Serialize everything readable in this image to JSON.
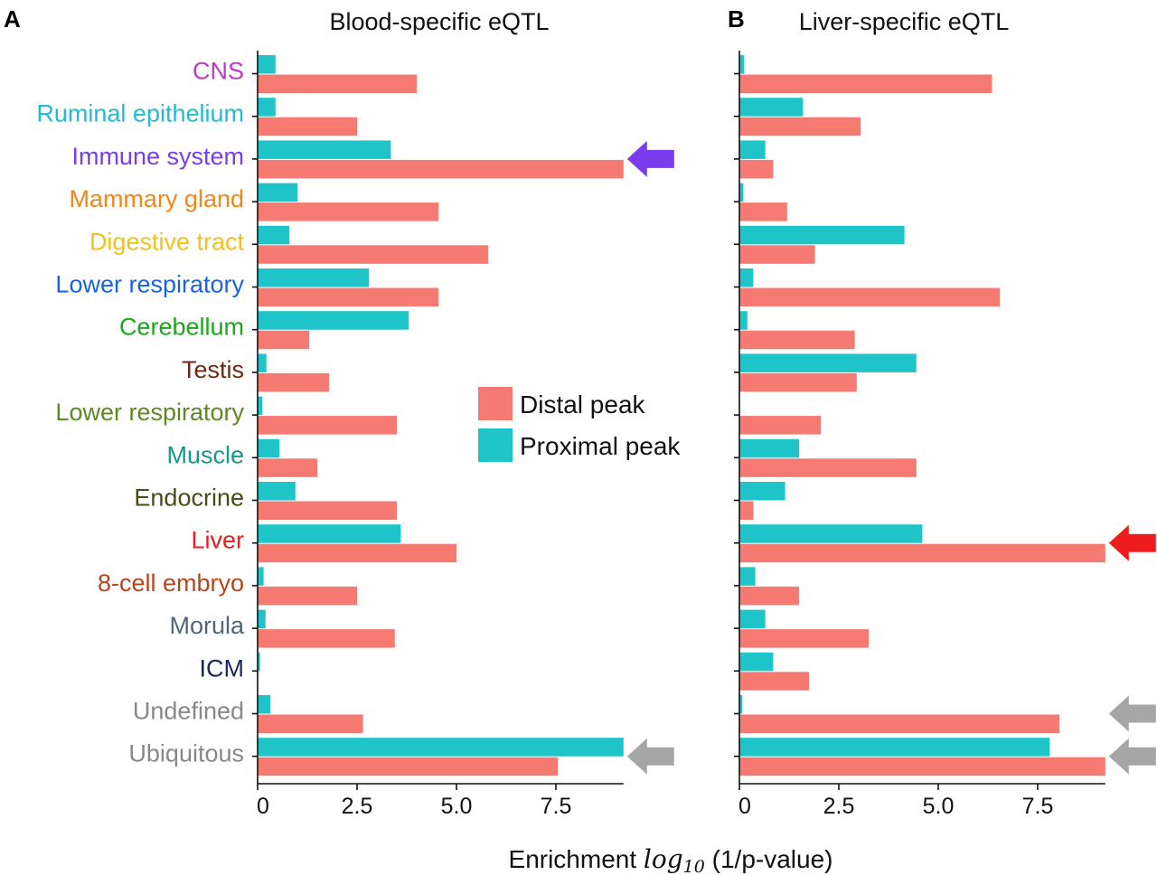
{
  "chart_data": {
    "type": "bar",
    "orientation": "horizontal",
    "xlabel_parts": [
      "Enrichment ",
      "log",
      "10",
      " (1/p-value)"
    ],
    "categories": [
      {
        "label": "CNS",
        "color": "#c03ac6"
      },
      {
        "label": "Ruminal epithelium",
        "color": "#1fbcd3"
      },
      {
        "label": "Immune system",
        "color": "#7b3cf0"
      },
      {
        "label": "Mammary gland",
        "color": "#f0861c"
      },
      {
        "label": "Digestive tract",
        "color": "#f2c11d"
      },
      {
        "label": "Lower respiratory",
        "color": "#1a63e0"
      },
      {
        "label": "Cerebellum",
        "color": "#1aa81a"
      },
      {
        "label": "Testis",
        "color": "#6b2a14"
      },
      {
        "label": "Lower respiratory",
        "color": "#5c8a22"
      },
      {
        "label": "Muscle",
        "color": "#16998c"
      },
      {
        "label": "Endocrine",
        "color": "#4a4a1a"
      },
      {
        "label": "Liver",
        "color": "#ee1c1c"
      },
      {
        "label": "8-cell embryo",
        "color": "#b5451b"
      },
      {
        "label": "Morula",
        "color": "#4d6878"
      },
      {
        "label": "ICM",
        "color": "#14285c"
      },
      {
        "label": "Undefined",
        "color": "#888888"
      },
      {
        "label": "Ubiquitous",
        "color": "#888888"
      }
    ],
    "legend": {
      "placement": "center",
      "entries": [
        {
          "name": "Distal peak",
          "color": "#f47a72"
        },
        {
          "name": "Proximal peak",
          "color": "#1fc4c9"
        }
      ]
    },
    "xticks": [
      "0",
      "2.5",
      "5.0",
      "7.5"
    ],
    "xtick_values": [
      0,
      2.5,
      5.0,
      7.5
    ],
    "xlim": [
      0,
      9.2
    ],
    "panels": [
      {
        "letter": "A",
        "title": "Blood-specific eQTL",
        "series": [
          {
            "name": "Proximal peak",
            "values": [
              0.45,
              0.45,
              3.35,
              1.0,
              0.8,
              2.8,
              3.8,
              0.22,
              0.12,
              0.55,
              0.95,
              3.6,
              0.15,
              0.2,
              0.06,
              0.32,
              9.2
            ]
          },
          {
            "name": "Distal peak",
            "values": [
              4.0,
              2.5,
              9.2,
              4.55,
              5.8,
              4.55,
              1.3,
              1.8,
              3.5,
              1.5,
              3.5,
              5.0,
              2.5,
              3.45,
              0.0,
              2.65,
              7.55
            ]
          }
        ],
        "arrows": [
          {
            "category": "Immune system",
            "color": "#7b3cf0"
          },
          {
            "category": "Ubiquitous",
            "color": "#a6a6a6"
          }
        ]
      },
      {
        "letter": "B",
        "title": "Liver-specific eQTL",
        "series": [
          {
            "name": "Proximal peak",
            "values": [
              0.12,
              1.6,
              0.65,
              0.1,
              4.15,
              0.35,
              0.2,
              4.45,
              0.0,
              1.5,
              1.15,
              4.6,
              0.4,
              0.65,
              0.85,
              0.07,
              7.8
            ]
          },
          {
            "name": "Distal peak",
            "values": [
              6.35,
              3.05,
              0.85,
              1.2,
              1.9,
              6.55,
              2.9,
              2.95,
              2.05,
              4.45,
              0.35,
              9.2,
              1.5,
              3.25,
              1.75,
              8.05,
              9.2
            ]
          }
        ],
        "arrows": [
          {
            "category": "Liver",
            "color": "#ee1c1c"
          },
          {
            "category": "Undefined",
            "color": "#a6a6a6"
          },
          {
            "category": "Ubiquitous",
            "color": "#a6a6a6"
          }
        ]
      }
    ]
  }
}
